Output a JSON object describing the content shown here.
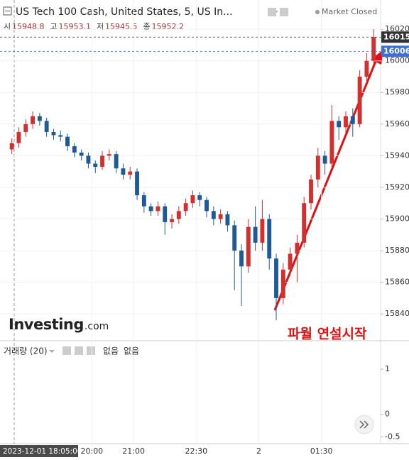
{
  "header": {
    "title": "US Tech 100 Cash, United States, 5, US In...",
    "status": "Market Closed",
    "ohlc": [
      {
        "label": "시",
        "value": 15948.8
      },
      {
        "label": "고",
        "value": 15953.1
      },
      {
        "label": "저",
        "value": 15945.5
      },
      {
        "label": "종",
        "value": 15952.2
      }
    ]
  },
  "chart_data": {
    "type": "candlestick",
    "open": [
      15944,
      15948,
      15955,
      15960,
      15965,
      15962,
      15955,
      15953,
      15952,
      15946,
      15942,
      15940,
      15935,
      15933,
      15940,
      15941,
      15932,
      15928,
      15930,
      15915,
      15908,
      15905,
      15908,
      15898,
      15900,
      15905,
      15910,
      15915,
      15912,
      15905,
      15900,
      15903,
      15896,
      15880,
      15870,
      15895,
      15885,
      15900,
      15875,
      15850,
      15868,
      15878,
      15885,
      15910,
      15925,
      15940,
      15935,
      15962,
      15958,
      15965,
      15960,
      15990,
      16000
    ],
    "high": [
      15951,
      15958,
      15963,
      15968,
      15967,
      15964,
      15957,
      15956,
      15954,
      15948,
      15944,
      15942,
      15937,
      15943,
      15944,
      15943,
      15935,
      15933,
      15932,
      15917,
      15910,
      15911,
      15910,
      15903,
      15908,
      15913,
      15918,
      15917,
      15914,
      15908,
      15906,
      15905,
      15899,
      15884,
      15900,
      15908,
      15912,
      15903,
      15878,
      15872,
      15882,
      15890,
      15914,
      15928,
      15945,
      15943,
      15972,
      15965,
      15968,
      15970,
      15994,
      16005,
      16020
    ],
    "low": [
      15941,
      15945,
      15952,
      15957,
      15959,
      15952,
      15950,
      15949,
      15943,
      15939,
      15937,
      15932,
      15929,
      15931,
      15937,
      15929,
      15925,
      15925,
      15912,
      15904,
      15902,
      15902,
      15890,
      15894,
      15897,
      15902,
      15907,
      15908,
      15901,
      15896,
      15897,
      15892,
      15855,
      15845,
      15866,
      15880,
      15880,
      15868,
      15836,
      15846,
      15864,
      15860,
      15882,
      15906,
      15920,
      15928,
      15932,
      15950,
      15954,
      15952,
      15958,
      15986,
      15998
    ],
    "close": [
      15948,
      15955,
      15960,
      15965,
      15962,
      15955,
      15953,
      15952,
      15946,
      15942,
      15940,
      15935,
      15933,
      15940,
      15941,
      15932,
      15928,
      15930,
      15915,
      15908,
      15905,
      15908,
      15898,
      15900,
      15905,
      15910,
      15915,
      15912,
      15905,
      15900,
      15903,
      15896,
      15880,
      15870,
      15895,
      15885,
      15900,
      15875,
      15850,
      15868,
      15878,
      15885,
      15910,
      15925,
      15940,
      15935,
      15962,
      15958,
      15965,
      15960,
      15990,
      16000,
      16015
    ],
    "up_color": "#d32f2f",
    "down_color": "#1e5a96",
    "xlim": [
      -1.7,
      53
    ],
    "ylim": [
      15823,
      16025
    ],
    "xticks": [
      {
        "value": 11.5,
        "label": "20:00"
      },
      {
        "value": 17.5,
        "label": "21:00"
      },
      {
        "value": 26.5,
        "label": "22:30"
      },
      {
        "value": 35.5,
        "label": "2"
      },
      {
        "value": 44.5,
        "label": "01:30"
      }
    ],
    "yticks": [
      15840,
      15860,
      15880,
      15900,
      15920,
      15940,
      15960,
      15980,
      {
        "value": 16000,
        "label": "16000."
      },
      16020
    ],
    "grid": true,
    "price_labels": [
      {
        "value": 16015,
        "label": "16015.",
        "color": "#333333"
      },
      {
        "value": 16006,
        "label": "16006.",
        "color": "#3d6fd6"
      }
    ],
    "annotation": "파월 연설시작",
    "annotation_color": "#e01010",
    "crosshair": "2023-12-01 18:05:00",
    "watermark": {
      "name": "Investing",
      "suffix": ".com"
    }
  },
  "volume_panel": {
    "title": "거래량 (20)",
    "values": [
      "없음",
      "없음"
    ],
    "ylim": [
      -0.65,
      1.55
    ],
    "yticks": [
      1,
      0,
      -0.5
    ]
  }
}
